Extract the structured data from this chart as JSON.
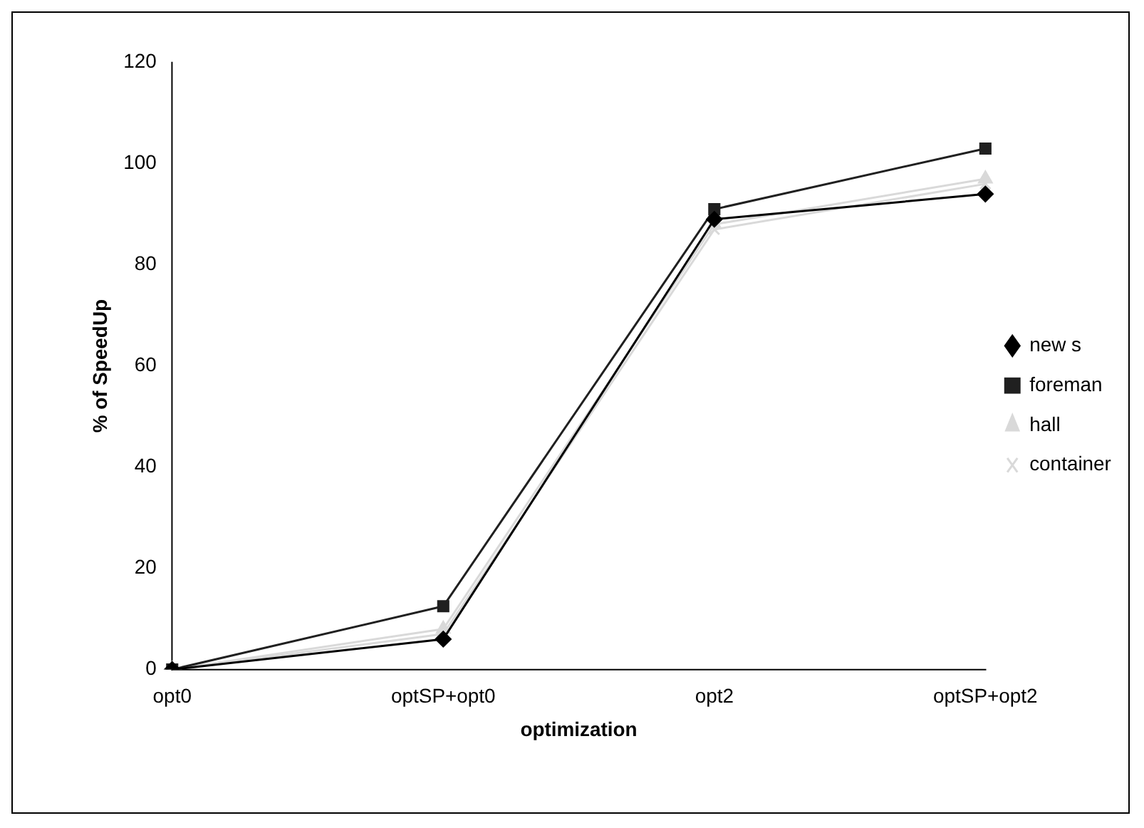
{
  "chart_data": {
    "type": "line",
    "xlabel": "optimization",
    "ylabel": "% of SpeedUp",
    "categories": [
      "opt0",
      "optSP+opt0",
      "opt2",
      "optSP+opt2"
    ],
    "series": [
      {
        "name": "new s",
        "color": "#000000",
        "marker": "diamond",
        "values": [
          0,
          6,
          89,
          94
        ]
      },
      {
        "name": "foreman",
        "color": "#202020",
        "marker": "square",
        "values": [
          0,
          12.5,
          91,
          103
        ]
      },
      {
        "name": "hall",
        "color": "#d9d9d9",
        "marker": "triangle",
        "values": [
          0,
          8,
          88,
          97
        ]
      },
      {
        "name": "container",
        "color": "#d9d9d9",
        "marker": "cross",
        "values": [
          0,
          7,
          87,
          96
        ]
      }
    ],
    "ylim": [
      0,
      120
    ],
    "yticks": [
      0,
      20,
      40,
      60,
      80,
      100,
      120
    ],
    "grid": false,
    "legend": "right",
    "line_style": "solid"
  }
}
